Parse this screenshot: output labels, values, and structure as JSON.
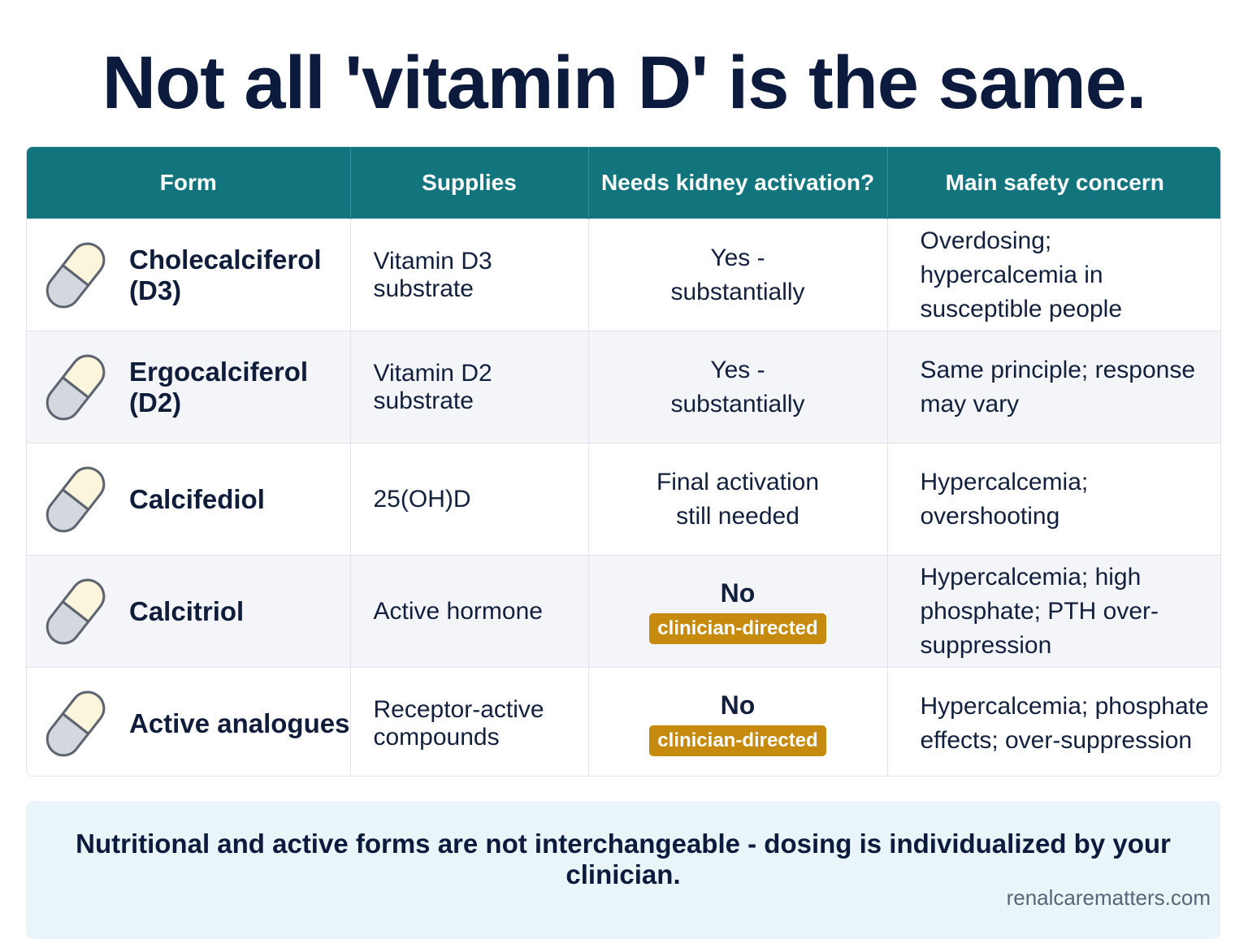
{
  "title": "Not all 'vitamin D' is the same.",
  "table": {
    "headers": [
      "Form",
      "Supplies",
      "Needs kidney activation?",
      "Main safety concern"
    ],
    "rows": [
      {
        "icon": "pill-capsule-icon",
        "form": "Cholecalciferol (D3)",
        "supplies": "Vitamin D3 substrate",
        "kidney": "Yes - substantially",
        "kidney_badge": "",
        "concern": "Overdosing; hypercalcemia in susceptible people"
      },
      {
        "icon": "pill-capsule-icon",
        "form": "Ergocalciferol (D2)",
        "supplies": "Vitamin D2 substrate",
        "kidney": "Yes - substantially",
        "kidney_badge": "",
        "concern": "Same principle; response may vary"
      },
      {
        "icon": "pill-capsule-icon",
        "form": "Calcifediol",
        "supplies": "25(OH)D",
        "kidney": "Final activation still needed",
        "kidney_badge": "",
        "concern": "Hypercalcemia; overshooting"
      },
      {
        "icon": "pill-capsule-icon",
        "form": "Calcitriol",
        "supplies": "Active hormone",
        "kidney": "No",
        "kidney_badge": "clinician-directed",
        "concern": "Hypercalcemia; high phosphate; PTH over-suppression"
      },
      {
        "icon": "pill-capsule-icon",
        "form": "Active analogues",
        "supplies": "Receptor-active compounds",
        "kidney": "No",
        "kidney_badge": "clinician-directed",
        "concern": "Hypercalcemia; phosphate effects; over-suppression"
      }
    ]
  },
  "footer": {
    "message": "Nutritional and active forms are not interchangeable - dosing is individualized by your clinician.",
    "source": "renalcarematters.com"
  },
  "colors": {
    "header_bg": "#12747c",
    "badge_bg": "#c58a0e",
    "footer_bg": "#eaf5f9",
    "title_text": "#0b1a3d"
  }
}
